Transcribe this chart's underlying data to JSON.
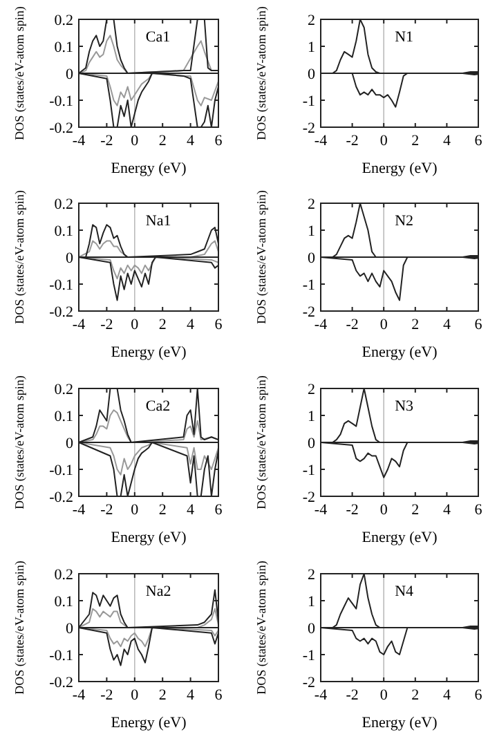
{
  "chart_data": [
    {
      "type": "line",
      "title": "Ca1",
      "xlabel": "Energy (eV)",
      "ylabel": "DOS (states/eV-atom spin)",
      "xlim": [
        -4,
        6
      ],
      "xticks": [
        -4,
        -2,
        0,
        2,
        4,
        6
      ],
      "ylim": [
        -0.2,
        0.2
      ],
      "yticks": [
        -0.2,
        -0.1,
        0,
        0.1,
        0.2
      ],
      "ref_lines": [
        {
          "axis": "x",
          "value": 0,
          "color": "#bbbbbb"
        }
      ],
      "series": [
        {
          "color": "#999999",
          "x": [
            -4,
            -3.5,
            -3.25,
            -3,
            -2.75,
            -2.5,
            -2.25,
            -2,
            -1.75,
            -1.5,
            -1.25,
            -1,
            -0.5,
            3.5,
            4.5,
            4.75,
            5,
            5.5
          ],
          "values": [
            0,
            0.01,
            0.04,
            0.06,
            0.08,
            0.06,
            0.07,
            0.12,
            0.14,
            0.1,
            0.05,
            0.03,
            0,
            0.01,
            0.1,
            0.12,
            0.08,
            0.01
          ]
        },
        {
          "color": "#999999",
          "x": [
            -4,
            -2,
            -1.75,
            -1.5,
            -1.25,
            -1,
            -0.75,
            -0.5,
            -0.25,
            0,
            0.5,
            1,
            1.25,
            3.5,
            4,
            4.5,
            4.75,
            5,
            5.5,
            6
          ],
          "values": [
            0,
            -0.01,
            -0.05,
            -0.1,
            -0.12,
            -0.07,
            -0.09,
            -0.05,
            -0.1,
            -0.08,
            -0.04,
            -0.02,
            0,
            -0.01,
            -0.01,
            -0.1,
            -0.12,
            -0.09,
            -0.1,
            -0.03
          ]
        },
        {
          "color": "#222222",
          "x": [
            -4,
            -3.5,
            -3.25,
            -3,
            -2.75,
            -2.5,
            -2.25,
            -2,
            -1.75,
            -1.5,
            -1.25,
            -1,
            -0.75,
            -0.5,
            3.5,
            4,
            4.5,
            4.75,
            5,
            5.25,
            5.5,
            6
          ],
          "values": [
            0,
            0.02,
            0.08,
            0.12,
            0.14,
            0.1,
            0.12,
            0.2,
            0.2,
            0.2,
            0.1,
            0.05,
            0.02,
            0,
            0.01,
            0.01,
            0.2,
            0.2,
            0.2,
            0.02,
            0.01,
            0.01
          ]
        },
        {
          "color": "#222222",
          "x": [
            -4,
            -2,
            -1.75,
            -1.5,
            -1.25,
            -1,
            -0.75,
            -0.5,
            -0.25,
            0,
            0.25,
            0.5,
            0.75,
            1,
            1.25,
            3.5,
            4,
            4.5,
            4.75,
            5,
            5.25,
            5.5,
            5.75,
            6
          ],
          "values": [
            0,
            -0.02,
            -0.1,
            -0.2,
            -0.2,
            -0.12,
            -0.16,
            -0.1,
            -0.2,
            -0.15,
            -0.1,
            -0.07,
            -0.05,
            -0.03,
            0,
            -0.01,
            -0.02,
            -0.2,
            -0.2,
            -0.18,
            -0.12,
            -0.2,
            -0.1,
            -0.05
          ]
        }
      ]
    },
    {
      "type": "line",
      "title": "N1",
      "xlabel": "Energy (eV)",
      "ylabel": "DOS (states/eV-atom spin)",
      "xlim": [
        -4,
        6
      ],
      "xticks": [
        -4,
        -2,
        0,
        2,
        4,
        6
      ],
      "ylim": [
        -2,
        2
      ],
      "yticks": [
        -2,
        -1,
        0,
        1,
        2
      ],
      "ref_lines": [
        {
          "axis": "x",
          "value": 0,
          "color": "#bbbbbb"
        }
      ],
      "series": [
        {
          "color": "#222222",
          "x": [
            -4,
            -3.25,
            -3,
            -2.75,
            -2.5,
            -2.25,
            -2,
            -1.75,
            -1.5,
            -1.25,
            -1,
            -0.75,
            -0.5,
            -0.25,
            5,
            5.5,
            6
          ],
          "values": [
            0,
            0,
            0.1,
            0.5,
            0.8,
            0.7,
            0.6,
            1.2,
            2,
            1.7,
            0.7,
            0.2,
            0.05,
            0,
            0,
            0.05,
            0.05
          ]
        },
        {
          "color": "#222222",
          "x": [
            -4,
            -2,
            -1.75,
            -1.5,
            -1.25,
            -1,
            -0.75,
            -0.5,
            -0.25,
            0,
            0.25,
            0.5,
            0.75,
            1,
            1.25,
            1.5,
            5,
            5.75,
            6
          ],
          "values": [
            0,
            0,
            -0.5,
            -0.8,
            -0.7,
            -0.8,
            -0.6,
            -0.8,
            -0.8,
            -0.9,
            -0.8,
            -1,
            -1.25,
            -0.7,
            -0.1,
            0,
            0,
            -0.05,
            -0.03
          ]
        }
      ]
    },
    {
      "type": "line",
      "title": "Na1",
      "xlabel": "Energy (eV)",
      "ylabel": "DOS (states/eV-atom spin)",
      "xlim": [
        -4,
        6
      ],
      "xticks": [
        -4,
        -2,
        0,
        2,
        4,
        6
      ],
      "ylim": [
        -0.2,
        0.2
      ],
      "yticks": [
        -0.2,
        -0.1,
        0,
        0.1,
        0.2
      ],
      "ref_lines": [
        {
          "axis": "x",
          "value": 0,
          "color": "#bbbbbb"
        }
      ],
      "series": [
        {
          "color": "#999999",
          "x": [
            -4,
            -3.25,
            -3,
            -2.75,
            -2.5,
            -2.25,
            -2,
            -1.75,
            -1.5,
            -1.25,
            -1,
            -0.5,
            4,
            5,
            5.5,
            5.75,
            6
          ],
          "values": [
            0,
            0.02,
            0.06,
            0.05,
            0.03,
            0.05,
            0.06,
            0.06,
            0.04,
            0.04,
            0.02,
            0,
            0,
            0.01,
            0.05,
            0.06,
            0.02
          ]
        },
        {
          "color": "#999999",
          "x": [
            -4,
            -1.75,
            -1.5,
            -1.25,
            -1,
            -0.75,
            -0.5,
            -0.25,
            0,
            0.25,
            0.5,
            0.75,
            1,
            1.5,
            5.5,
            6
          ],
          "values": [
            0,
            -0.01,
            -0.05,
            -0.08,
            -0.04,
            -0.06,
            -0.03,
            -0.05,
            -0.03,
            -0.04,
            -0.06,
            -0.03,
            -0.05,
            0,
            -0.01,
            -0.02
          ]
        },
        {
          "color": "#222222",
          "x": [
            -4,
            -3.5,
            -3.25,
            -3,
            -2.75,
            -2.5,
            -2.25,
            -2,
            -1.75,
            -1.5,
            -1.25,
            -1,
            -0.75,
            -0.5,
            4,
            4.5,
            5,
            5.5,
            5.75,
            6
          ],
          "values": [
            0,
            0,
            0.05,
            0.12,
            0.11,
            0.05,
            0.09,
            0.12,
            0.11,
            0.07,
            0.08,
            0.04,
            0.01,
            0,
            0.01,
            0.02,
            0.03,
            0.1,
            0.11,
            0.05
          ]
        },
        {
          "color": "#222222",
          "x": [
            -4,
            -1.75,
            -1.5,
            -1.25,
            -1,
            -0.75,
            -0.5,
            -0.25,
            0,
            0.25,
            0.5,
            0.75,
            1,
            1.25,
            1.5,
            5.5,
            5.75,
            6
          ],
          "values": [
            0,
            -0.02,
            -0.1,
            -0.16,
            -0.07,
            -0.12,
            -0.06,
            -0.1,
            -0.05,
            -0.08,
            -0.11,
            -0.06,
            -0.1,
            -0.02,
            0,
            -0.02,
            -0.04,
            -0.03
          ]
        }
      ]
    },
    {
      "type": "line",
      "title": "N2",
      "xlabel": "Energy (eV)",
      "ylabel": "DOS (states/eV-atom spin)",
      "xlim": [
        -4,
        6
      ],
      "xticks": [
        -4,
        -2,
        0,
        2,
        4,
        6
      ],
      "ylim": [
        -2,
        2
      ],
      "yticks": [
        -2,
        -1,
        0,
        1,
        2
      ],
      "ref_lines": [
        {
          "axis": "x",
          "value": 0,
          "color": "#bbbbbb"
        }
      ],
      "series": [
        {
          "color": "#222222",
          "x": [
            -4,
            -3.25,
            -3,
            -2.75,
            -2.5,
            -2.25,
            -2,
            -1.75,
            -1.5,
            -1.25,
            -1,
            -0.75,
            -0.5,
            5,
            5.5,
            6
          ],
          "values": [
            0,
            0,
            0.1,
            0.4,
            0.7,
            0.8,
            0.7,
            1.3,
            2,
            1.5,
            1,
            0.2,
            0,
            0,
            0.05,
            0.05
          ]
        },
        {
          "color": "#222222",
          "x": [
            -4,
            -2,
            -1.75,
            -1.5,
            -1.25,
            -1,
            -0.75,
            -0.5,
            -0.25,
            0,
            0.25,
            0.5,
            0.75,
            1,
            1.25,
            1.5,
            5,
            5.75,
            6
          ],
          "values": [
            0,
            -0.1,
            -0.5,
            -0.7,
            -0.6,
            -0.9,
            -0.6,
            -0.9,
            -1.1,
            -0.5,
            -0.7,
            -0.9,
            -1.3,
            -1.6,
            -0.3,
            0,
            0,
            -0.05,
            -0.03
          ]
        }
      ]
    },
    {
      "type": "line",
      "title": "Ca2",
      "xlabel": "Energy (eV)",
      "ylabel": "DOS (states/eV-atom spin)",
      "xlim": [
        -4,
        6
      ],
      "xticks": [
        -4,
        -2,
        0,
        2,
        4,
        6
      ],
      "ylim": [
        -0.2,
        0.2
      ],
      "yticks": [
        -0.2,
        -0.1,
        0,
        0.1,
        0.2
      ],
      "ref_lines": [
        {
          "axis": "x",
          "value": 0,
          "color": "#bbbbbb"
        }
      ],
      "series": [
        {
          "color": "#999999",
          "x": [
            -4,
            -3,
            -2.75,
            -2.5,
            -2.25,
            -2,
            -1.75,
            -1.5,
            -1.25,
            -1,
            -0.75,
            -0.5,
            -0.25,
            3.5,
            3.75,
            4,
            4.25,
            4.5,
            4.75,
            5.5,
            6
          ],
          "values": [
            0,
            0.01,
            0.03,
            0.06,
            0.06,
            0.05,
            0.1,
            0.12,
            0.11,
            0.08,
            0.05,
            0.02,
            0,
            0.01,
            0.05,
            0.06,
            0.02,
            0.08,
            0.01,
            0.02,
            0.01
          ]
        },
        {
          "color": "#999999",
          "x": [
            -4,
            -1.75,
            -1.5,
            -1.25,
            -1,
            -0.75,
            -0.5,
            -0.25,
            0,
            0.5,
            1,
            1.25,
            3.75,
            4,
            4.25,
            4.5,
            4.75,
            5,
            5.5,
            6
          ],
          "values": [
            0,
            -0.02,
            -0.05,
            -0.1,
            -0.12,
            -0.06,
            -0.1,
            -0.08,
            -0.05,
            -0.02,
            -0.01,
            0,
            -0.02,
            -0.08,
            -0.02,
            -0.1,
            -0.1,
            -0.05,
            -0.1,
            -0.02
          ]
        },
        {
          "color": "#222222",
          "x": [
            -4,
            -3,
            -2.75,
            -2.5,
            -2.25,
            -2,
            -1.75,
            -1.5,
            -1.25,
            -1,
            -0.75,
            -0.5,
            -0.25,
            3.5,
            3.75,
            4,
            4.25,
            4.5,
            4.75,
            5,
            5.5,
            6
          ],
          "values": [
            0,
            0.02,
            0.06,
            0.12,
            0.1,
            0.08,
            0.2,
            0.2,
            0.2,
            0.12,
            0.08,
            0.03,
            0,
            0.02,
            0.1,
            0.12,
            0.03,
            0.2,
            0.02,
            0.01,
            0.02,
            0.01
          ]
        },
        {
          "color": "#222222",
          "x": [
            -4,
            -1.75,
            -1.5,
            -1.25,
            -1,
            -0.75,
            -0.5,
            -0.25,
            0,
            0.25,
            0.5,
            0.75,
            1,
            1.25,
            3.75,
            4,
            4.25,
            4.5,
            4.75,
            5,
            5.25,
            5.5,
            5.75,
            6
          ],
          "values": [
            0,
            -0.05,
            -0.1,
            -0.2,
            -0.2,
            -0.12,
            -0.2,
            -0.15,
            -0.1,
            -0.06,
            -0.04,
            -0.03,
            -0.02,
            0,
            -0.05,
            -0.15,
            -0.05,
            -0.2,
            -0.2,
            -0.1,
            -0.05,
            -0.2,
            -0.1,
            -0.03
          ]
        }
      ]
    },
    {
      "type": "line",
      "title": "N3",
      "xlabel": "Energy (eV)",
      "ylabel": "DOS (states/eV-atom spin)",
      "xlim": [
        -4,
        6
      ],
      "xticks": [
        -4,
        -2,
        0,
        2,
        4,
        6
      ],
      "ylim": [
        -2,
        2
      ],
      "yticks": [
        -2,
        -1,
        0,
        1,
        2
      ],
      "ref_lines": [
        {
          "axis": "x",
          "value": 0,
          "color": "#bbbbbb"
        }
      ],
      "series": [
        {
          "color": "#222222",
          "x": [
            -4,
            -3.25,
            -3,
            -2.75,
            -2.5,
            -2.25,
            -2,
            -1.75,
            -1.5,
            -1.25,
            -1,
            -0.75,
            -0.5,
            -0.25,
            5,
            5.5,
            6
          ],
          "values": [
            0,
            0,
            0.1,
            0.3,
            0.7,
            0.8,
            0.7,
            0.6,
            1.3,
            2,
            1.3,
            0.6,
            0.1,
            0,
            0,
            0.05,
            0.05
          ]
        },
        {
          "color": "#222222",
          "x": [
            -4,
            -2,
            -1.75,
            -1.5,
            -1.25,
            -1,
            -0.75,
            -0.5,
            -0.25,
            0,
            0.25,
            0.5,
            0.75,
            1,
            1.25,
            1.5,
            5,
            5.75,
            6
          ],
          "values": [
            0,
            -0.1,
            -0.6,
            -0.7,
            -0.6,
            -0.4,
            -0.5,
            -0.5,
            -0.9,
            -1.3,
            -1,
            -0.6,
            -0.7,
            -0.9,
            -0.3,
            0,
            0,
            -0.05,
            -0.03
          ]
        }
      ]
    },
    {
      "type": "line",
      "title": "Na2",
      "xlabel": "Energy (eV)",
      "ylabel": "DOS (states/eV-atom spin)",
      "xlim": [
        -4,
        6
      ],
      "xticks": [
        -4,
        -2,
        0,
        2,
        4,
        6
      ],
      "ylim": [
        -0.2,
        0.2
      ],
      "yticks": [
        -0.2,
        -0.1,
        0,
        0.1,
        0.2
      ],
      "ref_lines": [
        {
          "axis": "x",
          "value": 0,
          "color": "#bbbbbb"
        }
      ],
      "series": [
        {
          "color": "#999999",
          "x": [
            -4,
            -3.25,
            -3,
            -2.75,
            -2.5,
            -2.25,
            -2,
            -1.75,
            -1.5,
            -1.25,
            -1,
            -0.5,
            4.5,
            5,
            5.5,
            5.75,
            6
          ],
          "values": [
            0,
            0.02,
            0.07,
            0.06,
            0.04,
            0.06,
            0.05,
            0.04,
            0.06,
            0.06,
            0.02,
            0,
            0,
            0.01,
            0.03,
            0.07,
            0.01
          ]
        },
        {
          "color": "#999999",
          "x": [
            -4,
            -2,
            -1.75,
            -1.5,
            -1.25,
            -1,
            -0.75,
            -0.5,
            -0.25,
            0,
            0.25,
            0.5,
            0.75,
            1,
            1.25,
            5.5,
            5.75,
            6
          ],
          "values": [
            0,
            -0.01,
            -0.04,
            -0.06,
            -0.05,
            -0.07,
            -0.04,
            -0.05,
            -0.03,
            -0.02,
            -0.04,
            -0.05,
            -0.07,
            -0.04,
            0,
            -0.01,
            -0.03,
            -0.01
          ]
        },
        {
          "color": "#222222",
          "x": [
            -4,
            -3.25,
            -3,
            -2.75,
            -2.5,
            -2.25,
            -2,
            -1.75,
            -1.5,
            -1.25,
            -1,
            -0.75,
            -0.5,
            4.5,
            5,
            5.5,
            5.75,
            6
          ],
          "values": [
            0,
            0.05,
            0.13,
            0.12,
            0.08,
            0.12,
            0.1,
            0.08,
            0.11,
            0.12,
            0.05,
            0.02,
            0,
            0.01,
            0.02,
            0.05,
            0.14,
            0.02
          ]
        },
        {
          "color": "#222222",
          "x": [
            -4,
            -2,
            -1.75,
            -1.5,
            -1.25,
            -1,
            -0.75,
            -0.5,
            -0.25,
            0,
            0.25,
            0.5,
            0.75,
            1,
            1.25,
            5.5,
            5.75,
            6
          ],
          "values": [
            0,
            -0.02,
            -0.08,
            -0.12,
            -0.1,
            -0.14,
            -0.08,
            -0.1,
            -0.05,
            -0.04,
            -0.08,
            -0.1,
            -0.13,
            -0.07,
            0,
            -0.02,
            -0.06,
            -0.02
          ]
        }
      ]
    },
    {
      "type": "line",
      "title": "N4",
      "xlabel": "Energy (eV)",
      "ylabel": "DOS (states/eV-atom spin)",
      "xlim": [
        -4,
        6
      ],
      "xticks": [
        -4,
        -2,
        0,
        2,
        4,
        6
      ],
      "ylim": [
        -2,
        2
      ],
      "yticks": [
        -2,
        -1,
        0,
        1,
        2
      ],
      "ref_lines": [
        {
          "axis": "x",
          "value": 0,
          "color": "#bbbbbb"
        }
      ],
      "series": [
        {
          "color": "#222222",
          "x": [
            -4,
            -3.25,
            -3,
            -2.75,
            -2.5,
            -2.25,
            -2,
            -1.75,
            -1.5,
            -1.25,
            -1,
            -0.75,
            -0.5,
            -0.25,
            5,
            5.5,
            6
          ],
          "values": [
            0,
            0,
            0.1,
            0.5,
            0.8,
            1.1,
            0.9,
            0.7,
            1.6,
            2,
            1.1,
            0.5,
            0.1,
            0,
            0,
            0.05,
            0.05
          ]
        },
        {
          "color": "#222222",
          "x": [
            -4,
            -2,
            -1.75,
            -1.5,
            -1.25,
            -1,
            -0.75,
            -0.5,
            -0.25,
            0,
            0.25,
            0.5,
            0.75,
            1,
            1.25,
            1.5,
            5,
            5.75,
            6
          ],
          "values": [
            0,
            -0.1,
            -0.4,
            -0.5,
            -0.4,
            -0.6,
            -0.4,
            -0.5,
            -0.9,
            -1,
            -0.7,
            -0.5,
            -0.9,
            -1,
            -0.5,
            0,
            0,
            -0.05,
            -0.03
          ]
        }
      ]
    }
  ]
}
